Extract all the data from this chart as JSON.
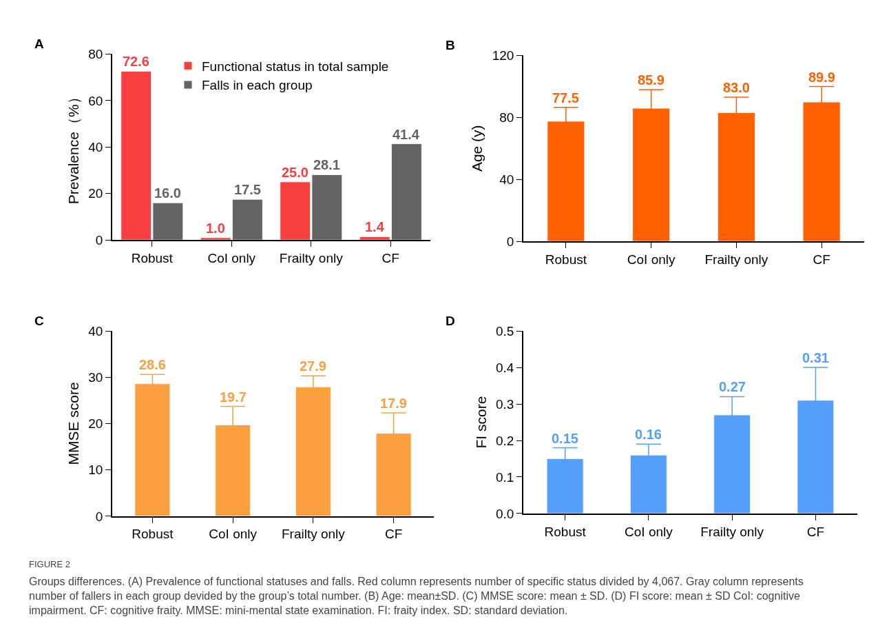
{
  "chart_data": [
    {
      "type": "bar",
      "title": "A",
      "ylabel": "Prevalence（%）",
      "categories": [
        "Robust",
        "CoI only",
        "Frailty only",
        "CF"
      ],
      "series": [
        {
          "name": "Functional status in total sample",
          "color": "#f73f3f",
          "values": [
            72.6,
            1.0,
            25.0,
            1.4
          ],
          "value_labels": [
            "72.6",
            "1.0",
            "25.0",
            "1.4"
          ]
        },
        {
          "name": "Falls in each group",
          "color": "#636363",
          "values": [
            16.0,
            17.5,
            28.1,
            41.4
          ],
          "value_labels": [
            "16.0",
            "17.5",
            "28.1",
            "41.4"
          ]
        }
      ],
      "ylim": [
        0,
        80
      ],
      "yticks": [
        0,
        20,
        40,
        60,
        80
      ],
      "legend": "top right"
    },
    {
      "type": "bar",
      "title": "B",
      "ylabel": "Age (y)",
      "categories": [
        "Robust",
        "CoI only",
        "Frailty only",
        "CF"
      ],
      "series": [
        {
          "color": "#ff6000",
          "values": [
            77.5,
            85.9,
            83.0,
            89.9
          ],
          "errors": [
            9,
            12,
            10,
            10
          ],
          "value_labels": [
            "77.5",
            "85.9",
            "83.0",
            "89.9"
          ]
        }
      ],
      "ylim": [
        0,
        120
      ],
      "yticks": [
        0,
        40,
        80,
        120
      ]
    },
    {
      "type": "bar",
      "title": "C",
      "ylabel": "MMSE score",
      "categories": [
        "Robust",
        "CoI only",
        "Frailty only",
        "CF"
      ],
      "series": [
        {
          "color": "#fb9f3f",
          "values": [
            28.6,
            19.7,
            27.9,
            17.9
          ],
          "errors": [
            2,
            4,
            2.4,
            4.4
          ],
          "value_labels": [
            "28.6",
            "19.7",
            "27.9",
            "17.9"
          ]
        }
      ],
      "ylim": [
        0,
        40
      ],
      "yticks": [
        0,
        10,
        20,
        30,
        40
      ]
    },
    {
      "type": "bar",
      "title": "D",
      "ylabel": "FI score",
      "categories": [
        "Robust",
        "CoI only",
        "Frailty only",
        "CF"
      ],
      "series": [
        {
          "color": "#559ffc",
          "values": [
            0.15,
            0.16,
            0.27,
            0.31
          ],
          "errors": [
            0.03,
            0.03,
            0.05,
            0.09
          ],
          "value_labels": [
            "0.15",
            "0.16",
            "0.27",
            "0.31"
          ]
        }
      ],
      "ylim": [
        0,
        0.5
      ],
      "yticks": [
        {
          "value": 0,
          "label": "0.0"
        },
        0.1,
        0.2,
        0.3,
        0.4,
        0.5
      ],
      "annotations": [
        "FIGURE 2",
        "Groups differences. (A) Prevalence of functional statuses and falls. Red column represents number of specific status divided by 4,067. Gray column represents number of fallers in each group devided by the group’s total number. (B) Age: mean±SD. (C) MMSE score: mean ± SD. (D) FI score: mean ± SD CoI: cognitive impairment. CF: cognitive fraity. MMSE: mini-mental state examination. FI: fraity index. SD: standard deviation."
      ]
    }
  ]
}
